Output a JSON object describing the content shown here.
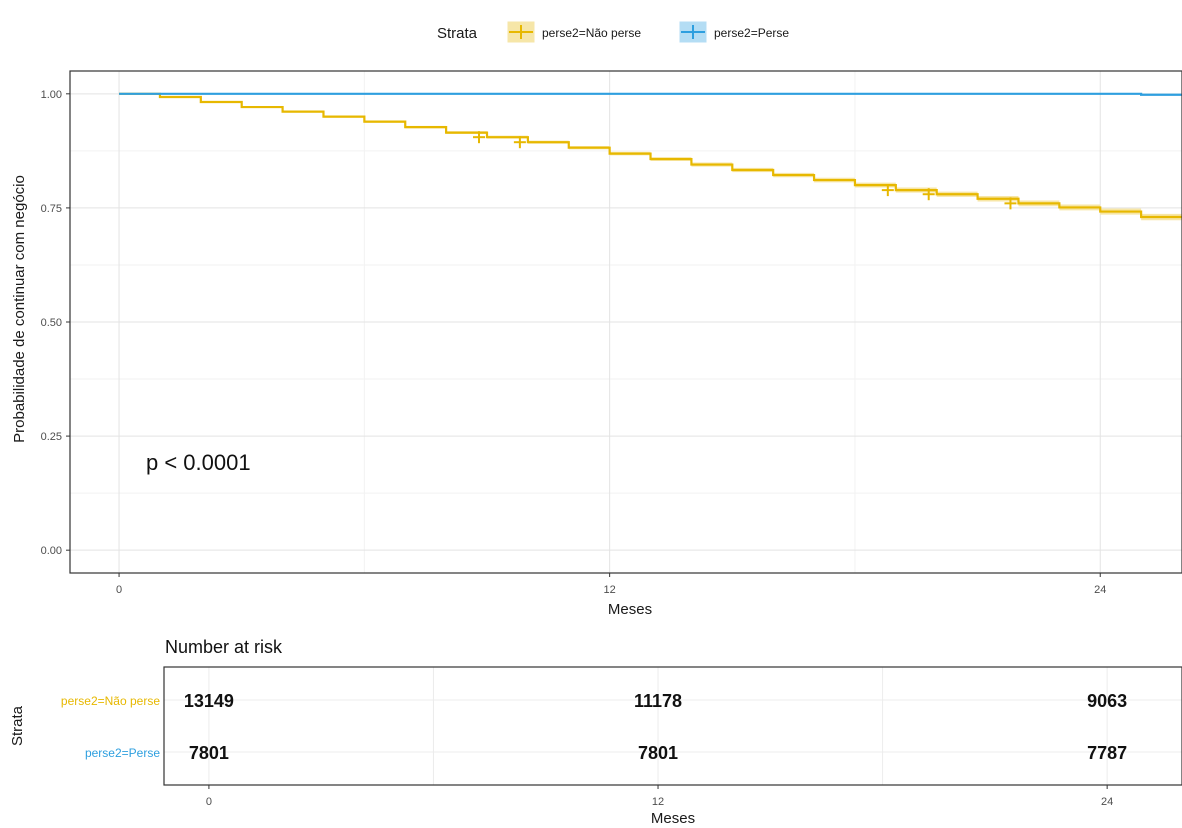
{
  "legend": {
    "title": "Strata",
    "items": [
      {
        "label": "perse2=Não perse",
        "color": "#E7B800"
      },
      {
        "label": "perse2=Perse",
        "color": "#2E9FDF"
      }
    ]
  },
  "pvalue_text": "p < 0.0001",
  "risk_table": {
    "title": "Number at risk",
    "ylabel": "Strata",
    "xlabel": "Meses",
    "rows": [
      {
        "label": "perse2=Não perse",
        "color": "#E7B800",
        "values": [
          "13149",
          "11178",
          "9063"
        ]
      },
      {
        "label": "perse2=Perse",
        "color": "#2E9FDF",
        "values": [
          "7801",
          "7801",
          "7787"
        ]
      }
    ],
    "x_ticks": [
      "0",
      "12",
      "24"
    ]
  },
  "chart_data": {
    "type": "line",
    "title": "",
    "xlabel": "Meses",
    "ylabel": "Probabilidade de continuar com negócio",
    "xlim": [
      -1.2,
      26
    ],
    "ylim": [
      -0.05,
      1.05
    ],
    "x_ticks": [
      0,
      12,
      24
    ],
    "y_ticks": [
      0.0,
      0.25,
      0.5,
      0.75,
      1.0
    ],
    "y_tick_labels": [
      "0.00",
      "0.25",
      "0.50",
      "0.75",
      "1.00"
    ],
    "grid": true,
    "legend_position": "top",
    "series": [
      {
        "name": "perse2=Não perse",
        "color": "#E7B800",
        "step": [
          [
            0,
            1.0
          ],
          [
            1,
            0.993
          ],
          [
            2,
            0.982
          ],
          [
            3,
            0.971
          ],
          [
            4,
            0.961
          ],
          [
            5,
            0.95
          ],
          [
            6,
            0.939
          ],
          [
            7,
            0.927
          ],
          [
            8,
            0.915
          ],
          [
            9,
            0.905
          ],
          [
            10,
            0.894
          ],
          [
            11,
            0.882
          ],
          [
            12,
            0.869
          ],
          [
            13,
            0.857
          ],
          [
            14,
            0.845
          ],
          [
            15,
            0.833
          ],
          [
            16,
            0.822
          ],
          [
            17,
            0.811
          ],
          [
            18,
            0.8
          ],
          [
            19,
            0.789
          ],
          [
            20,
            0.78
          ],
          [
            21,
            0.77
          ],
          [
            22,
            0.76
          ],
          [
            23,
            0.751
          ],
          [
            24,
            0.742
          ],
          [
            25,
            0.73
          ],
          [
            26,
            0.728
          ]
        ],
        "censor_x": [
          9,
          10,
          19,
          20,
          22
        ]
      },
      {
        "name": "perse2=Perse",
        "color": "#2E9FDF",
        "step": [
          [
            0,
            1.0
          ],
          [
            25,
            0.998
          ],
          [
            26,
            0.998
          ]
        ],
        "censor_x": []
      }
    ]
  }
}
